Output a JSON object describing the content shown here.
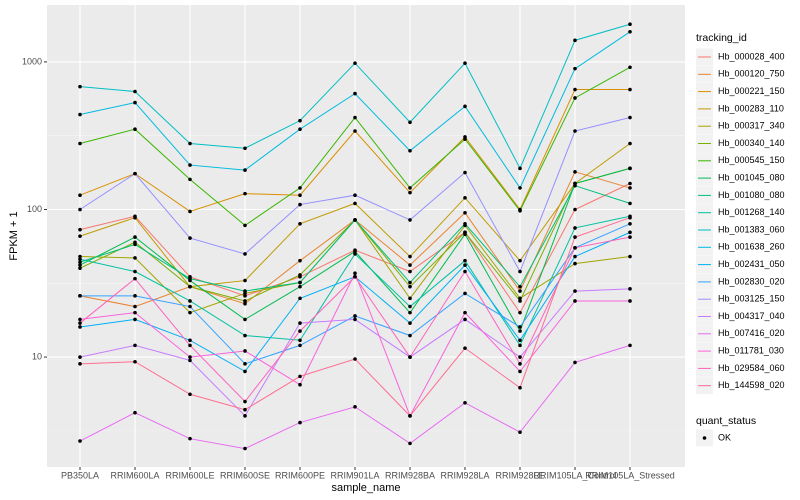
{
  "chart_data": {
    "type": "line",
    "x_label": "sample_name",
    "y_label": "FPKM + 1",
    "legend_title": "tracking_id",
    "point_legend": {
      "title": "quant_status",
      "labels": [
        "OK"
      ],
      "color": "#000000"
    },
    "categories": [
      "PB350LA",
      "RRIM600LA",
      "RRIM600LE",
      "RRIM600SE",
      "RRIM600PE",
      "RRIM901LA",
      "RRIM928BA",
      "RRIM928LA",
      "RRIM928LE",
      "RRIM105LA_Control",
      "RRIM105LA_Stressed"
    ],
    "log_y": true,
    "ylim": [
      1.8,
      2430
    ],
    "yticks": [
      10,
      100,
      1000
    ],
    "grid": true,
    "legend": "right",
    "series": [
      {
        "name": "Hb_000028_400",
        "color": "#F8766D",
        "values": [
          73,
          90,
          35,
          26,
          35,
          53,
          38,
          70,
          20,
          100,
          150
        ]
      },
      {
        "name": "Hb_000120_750",
        "color": "#EA8331",
        "values": [
          26,
          22,
          30,
          23,
          45,
          85,
          42,
          95,
          28,
          180,
          140
        ]
      },
      {
        "name": "Hb_000221_150",
        "color": "#D89000",
        "values": [
          125,
          175,
          97,
          128,
          125,
          340,
          130,
          310,
          100,
          650,
          650
        ]
      },
      {
        "name": "Hb_000283_110",
        "color": "#C09B00",
        "values": [
          66,
          88,
          30,
          33,
          80,
          110,
          48,
          120,
          45,
          150,
          280
        ]
      },
      {
        "name": "Hb_000317_340",
        "color": "#A3A500",
        "values": [
          48,
          47,
          20,
          27,
          32,
          85,
          25,
          78,
          25,
          43,
          48
        ]
      },
      {
        "name": "Hb_000340_140",
        "color": "#7CAE00",
        "values": [
          40,
          60,
          30,
          24,
          36,
          85,
          30,
          70,
          24,
          150,
          190
        ]
      },
      {
        "name": "Hb_000545_150",
        "color": "#39B600",
        "values": [
          280,
          350,
          160,
          78,
          140,
          420,
          140,
          300,
          98,
          570,
          920
        ]
      },
      {
        "name": "Hb_001045_080",
        "color": "#00BB4E",
        "values": [
          42,
          65,
          33,
          18,
          30,
          52,
          20,
          68,
          15,
          150,
          190
        ]
      },
      {
        "name": "Hb_001080_080",
        "color": "#00BF7D",
        "values": [
          44,
          58,
          34,
          28,
          32,
          85,
          32,
          80,
          30,
          145,
          110
        ]
      },
      {
        "name": "Hb_001268_140",
        "color": "#00C1A3",
        "values": [
          46,
          38,
          24,
          14,
          13,
          50,
          22,
          45,
          12,
          75,
          90
        ]
      },
      {
        "name": "Hb_001383_060",
        "color": "#00BFC4",
        "values": [
          680,
          630,
          280,
          260,
          400,
          980,
          390,
          980,
          190,
          1400,
          1800
        ]
      },
      {
        "name": "Hb_001638_260",
        "color": "#00BAE0",
        "values": [
          440,
          530,
          200,
          185,
          350,
          610,
          250,
          500,
          140,
          900,
          1600
        ]
      },
      {
        "name": "Hb_002431_050",
        "color": "#00B0F6",
        "values": [
          16,
          18,
          13,
          8,
          25,
          35,
          17,
          42,
          13,
          48,
          70
        ]
      },
      {
        "name": "Hb_002830_020",
        "color": "#35A2FF",
        "values": [
          26,
          26,
          22,
          9,
          12,
          19,
          14,
          27,
          16,
          55,
          80
        ]
      },
      {
        "name": "Hb_003125_150",
        "color": "#9590FF",
        "values": [
          100,
          175,
          64,
          50,
          108,
          125,
          85,
          178,
          38,
          340,
          420
        ]
      },
      {
        "name": "Hb_004317_040",
        "color": "#C77CFF",
        "values": [
          10,
          12,
          9.5,
          4,
          17,
          18,
          10,
          18,
          10,
          28,
          29
        ]
      },
      {
        "name": "Hb_007416_020",
        "color": "#E76BF3",
        "values": [
          2.7,
          4.2,
          2.8,
          2.4,
          3.6,
          4.6,
          2.6,
          4.9,
          3.1,
          9.2,
          12
        ]
      },
      {
        "name": "Hb_011781_030",
        "color": "#FA62DB",
        "values": [
          18,
          20,
          10,
          11,
          6.5,
          37,
          4,
          20,
          8,
          24,
          24
        ]
      },
      {
        "name": "Hb_029584_060",
        "color": "#FF62BC",
        "values": [
          17,
          34,
          12,
          5,
          15,
          35,
          10,
          38,
          9,
          55,
          65
        ]
      },
      {
        "name": "Hb_144598_020",
        "color": "#FF6C91",
        "values": [
          9,
          9.3,
          5.6,
          4.4,
          7.4,
          9.7,
          4,
          11.5,
          6.2,
          65,
          88
        ]
      }
    ]
  }
}
